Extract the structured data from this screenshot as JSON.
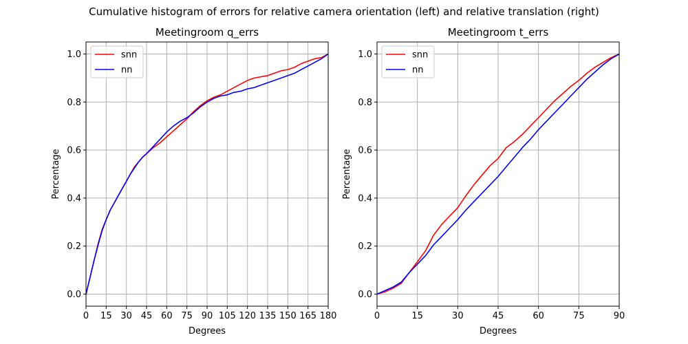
{
  "figure": {
    "suptitle": "Cumulative histogram of errors for relative camera orientation (left) and relative translation (right)"
  },
  "chart_data": [
    {
      "type": "line",
      "title": "Meetingroom q_errs",
      "xlabel": "Degrees",
      "ylabel": "Percentage",
      "xlim": [
        0,
        180
      ],
      "ylim": [
        -0.05,
        1.05
      ],
      "xticks": [
        0,
        15,
        30,
        45,
        60,
        75,
        90,
        105,
        120,
        135,
        150,
        165,
        180
      ],
      "xtick_labels": [
        "0",
        "15",
        "30",
        "45",
        "60",
        "75",
        "90",
        "105",
        "120",
        "135",
        "150",
        "165",
        "180"
      ],
      "yticks": [
        0.0,
        0.2,
        0.4,
        0.6,
        0.8,
        1.0
      ],
      "ytick_labels": [
        "0.0",
        "0.2",
        "0.4",
        "0.6",
        "0.8",
        "1.0"
      ],
      "grid": true,
      "legend_position": "top-left",
      "series": [
        {
          "name": "snn",
          "color": "#ff0000",
          "x": [
            0,
            3,
            6,
            9,
            12,
            15,
            18,
            21,
            24,
            27,
            30,
            33,
            36,
            39,
            42,
            45,
            50,
            55,
            60,
            65,
            70,
            75,
            80,
            85,
            90,
            95,
            100,
            105,
            110,
            115,
            120,
            125,
            130,
            135,
            140,
            145,
            150,
            155,
            160,
            165,
            170,
            175,
            180
          ],
          "y": [
            0.0,
            0.07,
            0.14,
            0.21,
            0.27,
            0.31,
            0.35,
            0.38,
            0.41,
            0.44,
            0.47,
            0.5,
            0.53,
            0.55,
            0.57,
            0.585,
            0.61,
            0.63,
            0.655,
            0.68,
            0.705,
            0.73,
            0.76,
            0.785,
            0.805,
            0.82,
            0.83,
            0.845,
            0.86,
            0.875,
            0.89,
            0.9,
            0.905,
            0.91,
            0.92,
            0.93,
            0.935,
            0.945,
            0.96,
            0.97,
            0.98,
            0.985,
            1.0
          ]
        },
        {
          "name": "nn",
          "color": "#0000ff",
          "x": [
            0,
            3,
            6,
            9,
            12,
            15,
            18,
            21,
            24,
            27,
            30,
            33,
            36,
            39,
            42,
            45,
            50,
            55,
            60,
            65,
            70,
            75,
            80,
            85,
            90,
            95,
            100,
            105,
            110,
            115,
            120,
            125,
            130,
            135,
            140,
            145,
            150,
            155,
            160,
            165,
            170,
            175,
            180
          ],
          "y": [
            0.0,
            0.07,
            0.14,
            0.205,
            0.265,
            0.31,
            0.35,
            0.38,
            0.41,
            0.44,
            0.47,
            0.5,
            0.525,
            0.55,
            0.57,
            0.585,
            0.615,
            0.645,
            0.675,
            0.7,
            0.72,
            0.735,
            0.755,
            0.78,
            0.8,
            0.815,
            0.825,
            0.83,
            0.84,
            0.845,
            0.855,
            0.86,
            0.87,
            0.88,
            0.89,
            0.9,
            0.91,
            0.92,
            0.935,
            0.95,
            0.965,
            0.98,
            1.0
          ]
        }
      ]
    },
    {
      "type": "line",
      "title": "Meetingroom t_errs",
      "xlabel": "Degrees",
      "ylabel": "Percentage",
      "xlim": [
        0,
        90
      ],
      "ylim": [
        -0.05,
        1.05
      ],
      "xticks": [
        0,
        15,
        30,
        45,
        60,
        75,
        90
      ],
      "xtick_labels": [
        "0",
        "15",
        "30",
        "45",
        "60",
        "75",
        "90"
      ],
      "yticks": [
        0.0,
        0.2,
        0.4,
        0.6,
        0.8,
        1.0
      ],
      "ytick_labels": [
        "0.0",
        "0.2",
        "0.4",
        "0.6",
        "0.8",
        "1.0"
      ],
      "grid": true,
      "legend_position": "top-left",
      "series": [
        {
          "name": "snn",
          "color": "#ff0000",
          "x": [
            0,
            3,
            6,
            9,
            12,
            15,
            18,
            21,
            24,
            27,
            30,
            33,
            36,
            39,
            42,
            45,
            48,
            51,
            54,
            57,
            60,
            63,
            66,
            69,
            72,
            75,
            78,
            81,
            84,
            87,
            90
          ],
          "y": [
            0.0,
            0.01,
            0.025,
            0.045,
            0.09,
            0.135,
            0.18,
            0.245,
            0.29,
            0.325,
            0.36,
            0.41,
            0.455,
            0.495,
            0.535,
            0.565,
            0.61,
            0.635,
            0.665,
            0.7,
            0.735,
            0.77,
            0.805,
            0.835,
            0.865,
            0.89,
            0.92,
            0.945,
            0.965,
            0.985,
            1.0
          ]
        },
        {
          "name": "nn",
          "color": "#0000ff",
          "x": [
            0,
            3,
            6,
            9,
            12,
            15,
            18,
            21,
            24,
            27,
            30,
            33,
            36,
            39,
            42,
            45,
            48,
            51,
            54,
            57,
            60,
            63,
            66,
            69,
            72,
            75,
            78,
            81,
            84,
            87,
            90
          ],
          "y": [
            0.0,
            0.015,
            0.03,
            0.05,
            0.09,
            0.125,
            0.16,
            0.205,
            0.24,
            0.275,
            0.31,
            0.35,
            0.385,
            0.42,
            0.455,
            0.49,
            0.53,
            0.57,
            0.61,
            0.645,
            0.685,
            0.72,
            0.755,
            0.79,
            0.825,
            0.86,
            0.895,
            0.925,
            0.955,
            0.98,
            1.0
          ]
        }
      ]
    }
  ]
}
